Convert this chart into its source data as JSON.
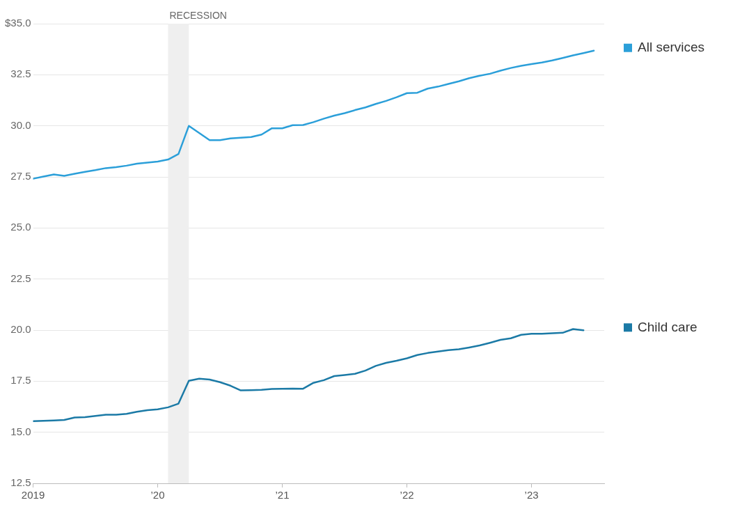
{
  "chart_data": {
    "type": "line",
    "x": [
      "2019-01",
      "2019-02",
      "2019-03",
      "2019-04",
      "2019-05",
      "2019-06",
      "2019-07",
      "2019-08",
      "2019-09",
      "2019-10",
      "2019-11",
      "2019-12",
      "2020-01",
      "2020-02",
      "2020-03",
      "2020-04",
      "2020-05",
      "2020-06",
      "2020-07",
      "2020-08",
      "2020-09",
      "2020-10",
      "2020-11",
      "2020-12",
      "2021-01",
      "2021-02",
      "2021-03",
      "2021-04",
      "2021-05",
      "2021-06",
      "2021-07",
      "2021-08",
      "2021-09",
      "2021-10",
      "2021-11",
      "2021-12",
      "2022-01",
      "2022-02",
      "2022-03",
      "2022-04",
      "2022-05",
      "2022-06",
      "2022-07",
      "2022-08",
      "2022-09",
      "2022-10",
      "2022-11",
      "2022-12",
      "2023-01",
      "2023-02",
      "2023-03",
      "2023-04",
      "2023-05",
      "2023-06",
      "2023-07"
    ],
    "series": [
      {
        "name": "All services",
        "color": "#2b9fd9",
        "values": [
          27.41,
          27.52,
          27.62,
          27.55,
          27.65,
          27.75,
          27.83,
          27.93,
          27.98,
          28.05,
          28.15,
          28.2,
          28.25,
          28.35,
          28.62,
          30.0,
          29.65,
          29.3,
          29.3,
          29.38,
          29.42,
          29.45,
          29.57,
          29.88,
          29.88,
          30.03,
          30.04,
          30.18,
          30.35,
          30.5,
          30.62,
          30.77,
          30.9,
          31.07,
          31.22,
          31.4,
          31.6,
          31.62,
          31.82,
          31.92,
          32.05,
          32.18,
          32.33,
          32.45,
          32.55,
          32.7,
          32.83,
          32.94,
          33.02,
          33.1,
          33.2,
          33.32,
          33.45,
          33.56,
          33.68
        ]
      },
      {
        "name": "Child care",
        "color": "#1b7aa6",
        "values": [
          15.54,
          15.56,
          15.58,
          15.6,
          15.72,
          15.74,
          15.8,
          15.86,
          15.86,
          15.9,
          16.0,
          16.08,
          16.12,
          16.22,
          16.4,
          17.52,
          17.62,
          17.58,
          17.45,
          17.28,
          17.05,
          17.06,
          17.08,
          17.12,
          17.13,
          17.14,
          17.13,
          17.42,
          17.55,
          17.75,
          17.8,
          17.86,
          18.02,
          18.25,
          18.4,
          18.5,
          18.62,
          18.78,
          18.88,
          18.95,
          19.02,
          19.06,
          19.15,
          19.25,
          19.38,
          19.52,
          19.6,
          19.77,
          19.82,
          19.82,
          19.85,
          19.87,
          20.05,
          19.99,
          null
        ]
      }
    ],
    "xlim": [
      "2019-01",
      "2023-08"
    ],
    "xticks": [
      {
        "value": "2019-01",
        "label": "2019"
      },
      {
        "value": "2020-01",
        "label": "’20"
      },
      {
        "value": "2021-01",
        "label": "’21"
      },
      {
        "value": "2022-01",
        "label": "’22"
      },
      {
        "value": "2023-01",
        "label": "’23"
      }
    ],
    "ylim": [
      12.5,
      35
    ],
    "yticks": [
      12.5,
      {
        "value": 15,
        "label": "15.0"
      },
      17.5,
      {
        "value": 20,
        "label": "20.0"
      },
      22.5,
      {
        "value": 25,
        "label": "25.0"
      },
      27.5,
      {
        "value": 30,
        "label": "30.0"
      },
      32.5,
      {
        "value": 35,
        "label": "$35.0"
      }
    ],
    "bands": [
      {
        "axis": "x",
        "from": "2020-02",
        "to": "2020-04",
        "label": "RECESSION",
        "color": "#efefef"
      }
    ],
    "grid": "y",
    "legend": "right",
    "marker": "none",
    "line_style": "solid"
  }
}
